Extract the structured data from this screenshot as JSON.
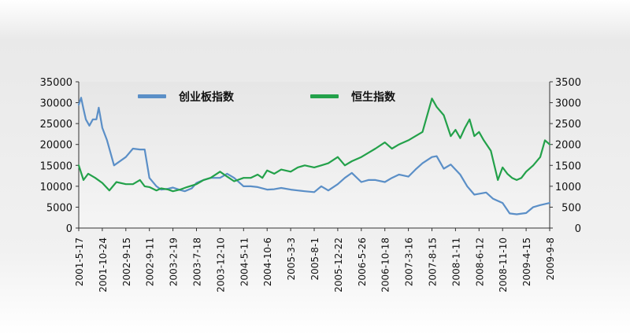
{
  "chart_data": {
    "type": "line",
    "title": "",
    "xlabel": "",
    "ylabel": "",
    "left_axis": {
      "ylim": [
        0,
        35000
      ],
      "ticks": [
        0,
        5000,
        10000,
        15000,
        20000,
        25000,
        30000,
        35000
      ]
    },
    "right_axis": {
      "ylim": [
        0,
        3500
      ],
      "ticks": [
        0,
        500,
        1000,
        1500,
        2000,
        2500,
        3000,
        3500
      ]
    },
    "x_tick_labels": [
      "2001-5-17",
      "2001-10-24",
      "2002-9-15",
      "2002-9-11",
      "2003-2-19",
      "2003-7-18",
      "2003-12-10",
      "2004-5-11",
      "2004-10-6",
      "2005-3-3",
      "2005-8-1",
      "2005-12-22",
      "2006-5-26",
      "2006-10-18",
      "2007-3-16",
      "2007-8-15",
      "2008-1-11",
      "2008-6-12",
      "2008-11-10",
      "2009-4-15",
      "2009-9-8"
    ],
    "grid": false,
    "legend_position": "top",
    "series": [
      {
        "name": "创业板指数",
        "axis": "left",
        "color": "#5b8fc7",
        "x": [
          0,
          0.1,
          0.2,
          0.3,
          0.45,
          0.6,
          0.75,
          0.85,
          1.0,
          1.2,
          1.5,
          2.0,
          2.3,
          2.6,
          2.8,
          3.0,
          3.3,
          3.5,
          3.8,
          4.0,
          4.3,
          4.5,
          4.8,
          5.0,
          5.3,
          5.6,
          6.0,
          6.3,
          6.6,
          7.0,
          7.3,
          7.6,
          8.0,
          8.3,
          8.6,
          9.0,
          9.3,
          9.6,
          10.0,
          10.3,
          10.6,
          11.0,
          11.3,
          11.6,
          12.0,
          12.3,
          12.6,
          13.0,
          13.3,
          13.6,
          14.0,
          14.3,
          14.6,
          15.0,
          15.2,
          15.5,
          15.8,
          16.0,
          16.2,
          16.5,
          16.8,
          17.0,
          17.3,
          17.6,
          18.0,
          18.3,
          18.6,
          19.0,
          19.3,
          19.6,
          20.0
        ],
        "values": [
          29500,
          31200,
          28500,
          26000,
          24500,
          26000,
          26000,
          28800,
          24000,
          21000,
          15000,
          17000,
          19000,
          18800,
          18800,
          12000,
          10000,
          9200,
          9400,
          9700,
          9100,
          8800,
          9500,
          10800,
          11500,
          12000,
          12000,
          13000,
          12000,
          10000,
          10000,
          9800,
          9200,
          9300,
          9600,
          9200,
          9000,
          8800,
          8600,
          10000,
          9000,
          10500,
          12000,
          13200,
          11000,
          11500,
          11500,
          11000,
          12000,
          12800,
          12300,
          14000,
          15500,
          17000,
          17200,
          14200,
          15200,
          14000,
          12800,
          10000,
          8000,
          8200,
          8500,
          7000,
          6000,
          3500,
          3300,
          3600,
          5000,
          5500,
          6000
        ]
      },
      {
        "name": "恒生指数",
        "axis": "right",
        "color": "#23a14a",
        "x": [
          0,
          0.2,
          0.4,
          0.7,
          1.0,
          1.3,
          1.6,
          2.0,
          2.3,
          2.6,
          2.8,
          3.0,
          3.3,
          3.5,
          3.8,
          4.0,
          4.3,
          4.6,
          5.0,
          5.3,
          5.6,
          6.0,
          6.3,
          6.6,
          7.0,
          7.3,
          7.6,
          7.8,
          8.0,
          8.3,
          8.6,
          9.0,
          9.3,
          9.6,
          10.0,
          10.3,
          10.6,
          11.0,
          11.3,
          11.6,
          12.0,
          12.3,
          12.6,
          13.0,
          13.3,
          13.6,
          14.0,
          14.3,
          14.6,
          15.0,
          15.2,
          15.5,
          15.8,
          16.0,
          16.2,
          16.4,
          16.6,
          16.8,
          17.0,
          17.2,
          17.5,
          17.8,
          18.0,
          18.2,
          18.4,
          18.6,
          18.8,
          19.0,
          19.3,
          19.6,
          19.8,
          20.0
        ],
        "values": [
          1500,
          1150,
          1300,
          1200,
          1080,
          900,
          1100,
          1050,
          1050,
          1150,
          1000,
          980,
          900,
          950,
          920,
          880,
          920,
          980,
          1050,
          1150,
          1200,
          1350,
          1230,
          1120,
          1200,
          1200,
          1280,
          1200,
          1380,
          1300,
          1400,
          1350,
          1450,
          1500,
          1450,
          1500,
          1550,
          1700,
          1500,
          1600,
          1700,
          1800,
          1900,
          2050,
          1900,
          2000,
          2100,
          2200,
          2300,
          3100,
          2900,
          2700,
          2200,
          2350,
          2150,
          2400,
          2600,
          2200,
          2300,
          2100,
          1850,
          1150,
          1450,
          1300,
          1200,
          1150,
          1200,
          1350,
          1500,
          1700,
          2100,
          2000
        ]
      }
    ]
  }
}
